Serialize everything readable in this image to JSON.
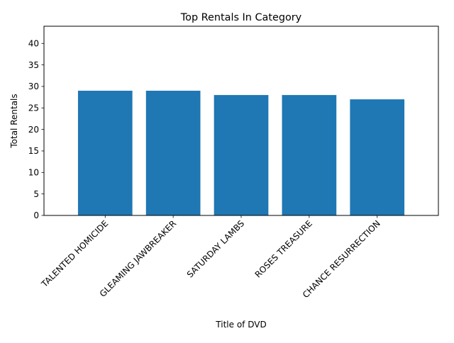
{
  "chart_data": {
    "type": "bar",
    "title": "Top Rentals In Category",
    "xlabel": "Title of DVD",
    "ylabel": "Total Rentals",
    "categories": [
      "TALENTED HOMICIDE",
      "GLEAMING JAWBREAKER",
      "SATURDAY LAMBS",
      "ROSES TREASURE",
      "CHANCE RESURRECTION"
    ],
    "values": [
      29,
      29,
      28,
      28,
      27
    ],
    "ylim": [
      0,
      44
    ],
    "yticks": [
      0,
      5,
      10,
      15,
      20,
      25,
      30,
      35,
      40
    ],
    "grid": false,
    "bar_color": "#1f77b4"
  }
}
